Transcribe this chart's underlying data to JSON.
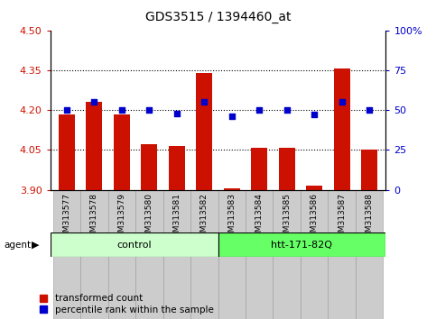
{
  "title": "GDS3515 / 1394460_at",
  "samples": [
    "GSM313577",
    "GSM313578",
    "GSM313579",
    "GSM313580",
    "GSM313581",
    "GSM313582",
    "GSM313583",
    "GSM313584",
    "GSM313585",
    "GSM313586",
    "GSM313587",
    "GSM313588"
  ],
  "red_values": [
    4.185,
    4.23,
    4.185,
    4.07,
    4.065,
    4.34,
    3.905,
    4.058,
    4.058,
    3.915,
    4.355,
    4.05
  ],
  "blue_values": [
    50,
    55,
    50,
    50,
    48,
    55,
    46,
    50,
    50,
    47,
    55,
    50
  ],
  "y_min": 3.9,
  "y_max": 4.5,
  "y_ticks": [
    3.9,
    4.05,
    4.2,
    4.35,
    4.5
  ],
  "y2_ticks": [
    0,
    25,
    50,
    75,
    100
  ],
  "bar_color": "#CC1100",
  "dot_color": "#0000CC",
  "agent_groups": [
    {
      "label": "control",
      "samples": 6,
      "color": "#CCFFCC",
      "dark_color": "#66FF66"
    },
    {
      "label": "htt-171-82Q",
      "samples": 6,
      "color": "#66FF66",
      "dark_color": "#00CC00"
    }
  ],
  "legend_red": "transformed count",
  "legend_blue": "percentile rank within the sample",
  "agent_label": "agent",
  "bar_width": 0.6
}
